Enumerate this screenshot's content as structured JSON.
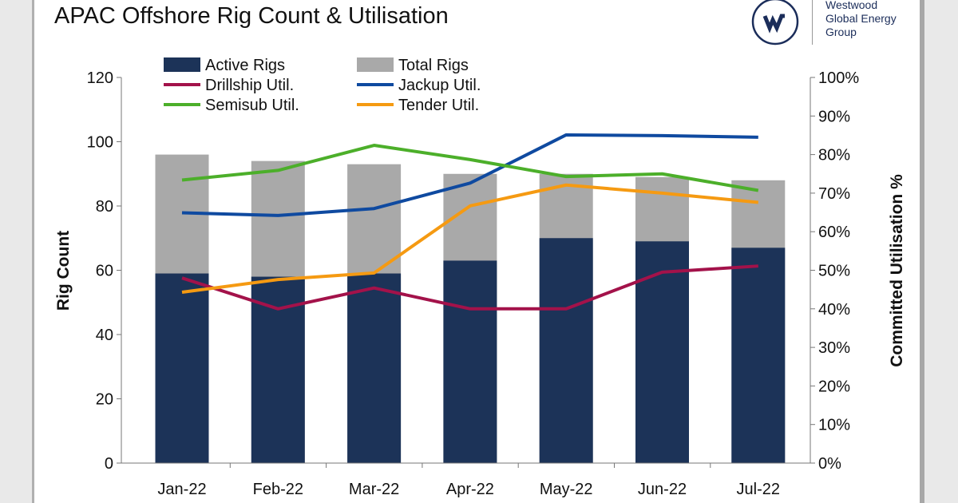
{
  "chart_data": {
    "type": "bar",
    "title": "APAC Offshore Rig Count & Utilisation",
    "categories": [
      "Jan-22",
      "Feb-22",
      "Mar-22",
      "Apr-22",
      "May-22",
      "Jun-22",
      "Jul-22"
    ],
    "ylabel": "Rig Count",
    "y2label": "Committed Utilisation %",
    "ylim": [
      0,
      120
    ],
    "yticks": [
      "0",
      "20",
      "40",
      "60",
      "80",
      "100",
      "120"
    ],
    "y2lim": [
      0,
      100
    ],
    "y2ticks": [
      "0%",
      "10%",
      "20%",
      "30%",
      "40%",
      "50%",
      "60%",
      "70%",
      "80%",
      "90%",
      "100%"
    ],
    "legend_position": "top",
    "bars": [
      {
        "name": "Total Rigs",
        "color": "#a9a9a9",
        "values": [
          96,
          94,
          93,
          90,
          90,
          89,
          88
        ]
      },
      {
        "name": "Active Rigs",
        "color": "#1c3358",
        "values": [
          59,
          58,
          59,
          63,
          70,
          69,
          67
        ]
      }
    ],
    "lines": [
      {
        "name": "Drillship Util.",
        "color": "#a3124a",
        "axis": "right",
        "values": [
          48,
          40,
          45.4,
          40,
          40,
          49.5,
          51.1
        ]
      },
      {
        "name": "Jackup Util.",
        "color": "#0f4aa0",
        "axis": "right",
        "values": [
          64.9,
          64.2,
          66,
          72.6,
          85.1,
          84.9,
          84.5
        ]
      },
      {
        "name": "Semisub Util.",
        "color": "#4caf2a",
        "axis": "right",
        "values": [
          73.4,
          75.9,
          82.4,
          78.7,
          74.3,
          75,
          70.7
        ]
      },
      {
        "name": "Tender Util.",
        "color": "#f59a12",
        "axis": "right",
        "values": [
          44.3,
          47.6,
          49.3,
          66.7,
          72.1,
          70,
          67.6
        ]
      }
    ]
  },
  "logo": {
    "text_lines": [
      "Westwood",
      "Global Energy",
      "Group"
    ],
    "color": "#1b2d5a"
  }
}
